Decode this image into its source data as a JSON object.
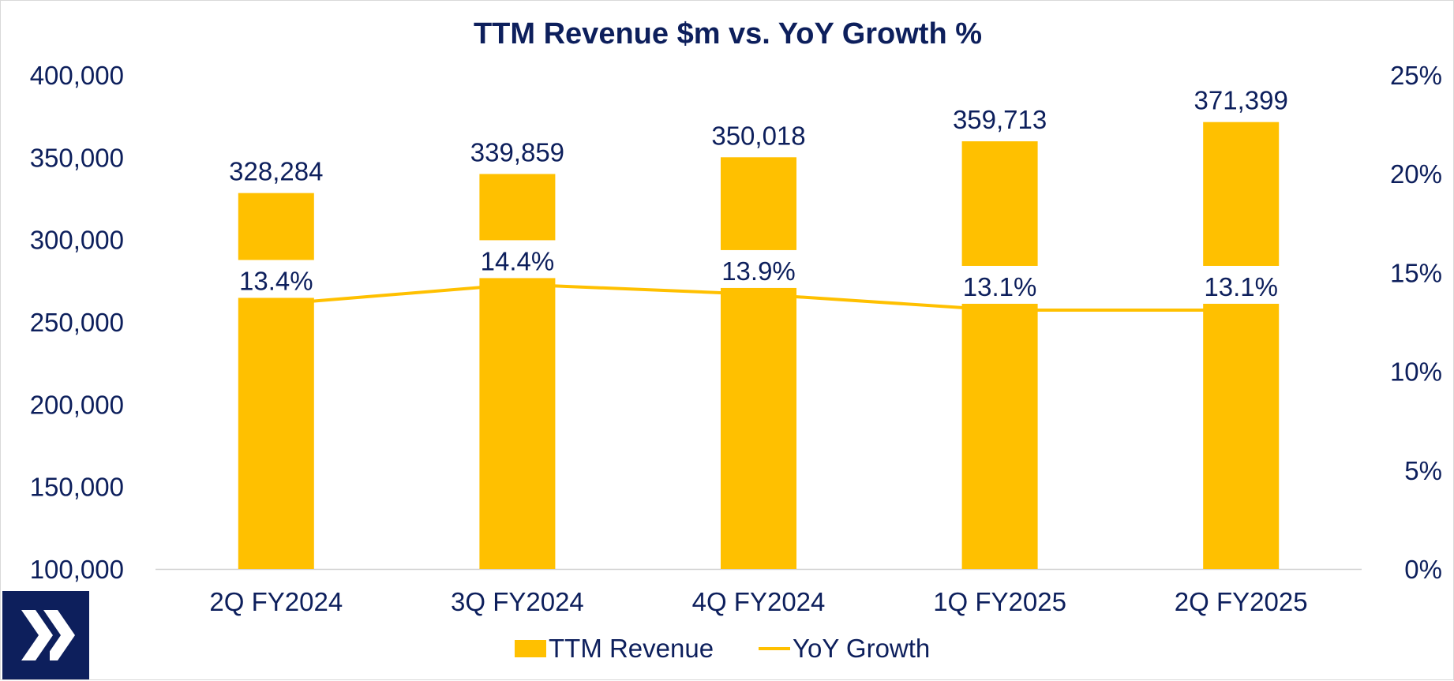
{
  "chart_data": {
    "type": "bar",
    "title": "TTM Revenue $m vs. YoY Growth %",
    "categories": [
      "2Q FY2024",
      "3Q FY2024",
      "4Q FY2024",
      "1Q FY2025",
      "2Q FY2025"
    ],
    "series": [
      {
        "name": "TTM Revenue",
        "type": "bar",
        "axis": "left",
        "values": [
          328284,
          339859,
          350018,
          359713,
          371399
        ],
        "labels": [
          "328,284",
          "339,859",
          "350,018",
          "359,713",
          "371,399"
        ],
        "color": "#FFC000"
      },
      {
        "name": "YoY Growth",
        "type": "line",
        "axis": "right",
        "values": [
          13.4,
          14.4,
          13.9,
          13.1,
          13.1
        ],
        "labels": [
          "13.4%",
          "14.4%",
          "13.9%",
          "13.1%",
          "13.1%"
        ],
        "color": "#FFC000"
      }
    ],
    "y_left": {
      "min": 100000,
      "max": 400000,
      "ticks": [
        100000,
        150000,
        200000,
        250000,
        300000,
        350000,
        400000
      ],
      "tick_labels": [
        "100,000",
        "150,000",
        "200,000",
        "250,000",
        "300,000",
        "350,000",
        "400,000"
      ]
    },
    "y_right": {
      "min": 0,
      "max": 25,
      "ticks": [
        0,
        5,
        10,
        15,
        20,
        25
      ],
      "tick_labels": [
        "0%",
        "5%",
        "10%",
        "15%",
        "20%",
        "25%"
      ]
    },
    "grid": false,
    "legend": "bottom",
    "text_color": "#0D1F5C"
  },
  "logo": {
    "icon": "x-logo-icon",
    "background": "#0D1F5C",
    "foreground": "#ffffff"
  }
}
